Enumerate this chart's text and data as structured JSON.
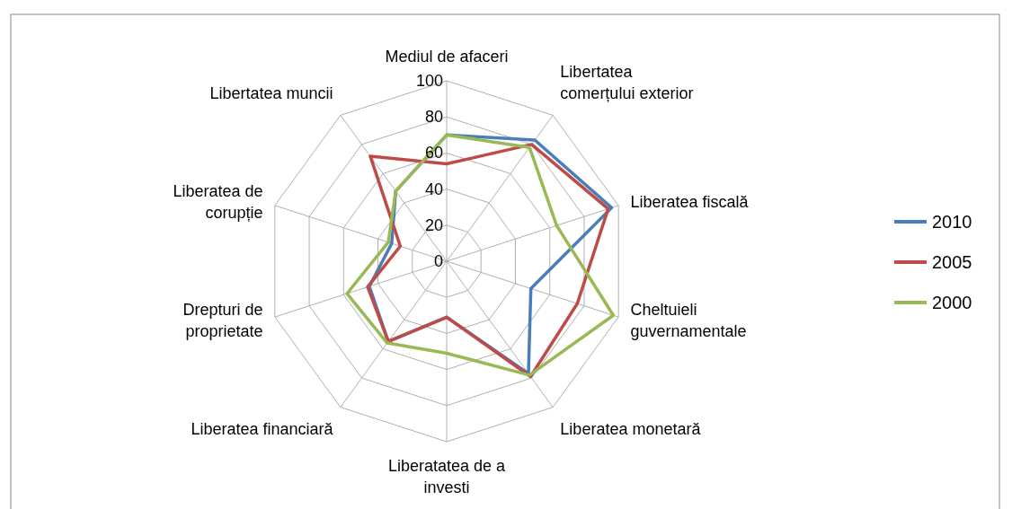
{
  "chart_data": {
    "type": "radar",
    "categories": [
      "Mediul de afaceri",
      "Libertatea\ncomerțului exterior",
      "Liberatea fiscală",
      "Cheltuieli\nguvernamentale",
      "Liberatea monetară",
      "Liberatatea de a\ninvesti",
      "Liberatea financiară",
      "Drepturi de\nproprietate",
      "Liberatea de\ncorupție",
      "Libertatea muncii"
    ],
    "series": [
      {
        "name": "2010",
        "color": "#4a7ebb",
        "values": [
          70,
          83,
          96,
          49,
          77,
          31,
          55,
          45,
          32,
          48
        ]
      },
      {
        "name": "2005",
        "color": "#be4b48",
        "values": [
          54,
          80,
          94,
          76,
          79,
          31,
          55,
          46,
          27,
          72
        ]
      },
      {
        "name": "2000",
        "color": "#98b954",
        "values": [
          70,
          78,
          64,
          97,
          78,
          51,
          56,
          58,
          34,
          48
        ]
      }
    ],
    "ylim": [
      0,
      100
    ],
    "yticks": [
      0,
      20,
      40,
      60,
      80,
      100
    ],
    "grid": true,
    "legend": "right"
  }
}
